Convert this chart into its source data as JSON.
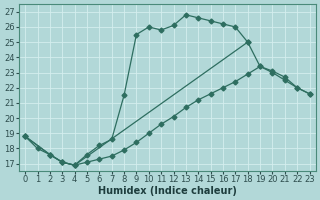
{
  "xlabel": "Humidex (Indice chaleur)",
  "background_color": "#b2d8d8",
  "grid_color": "#d4eeee",
  "line_color": "#2e6e60",
  "xlim": [
    -0.5,
    23.5
  ],
  "ylim": [
    16.5,
    27.5
  ],
  "xticks": [
    0,
    1,
    2,
    3,
    4,
    5,
    6,
    7,
    8,
    9,
    10,
    11,
    12,
    13,
    14,
    15,
    16,
    17,
    18,
    19,
    20,
    21,
    22,
    23
  ],
  "yticks": [
    17,
    18,
    19,
    20,
    21,
    22,
    23,
    24,
    25,
    26,
    27
  ],
  "line1_x": [
    0,
    1,
    2,
    3,
    4,
    5,
    6,
    7,
    8,
    9,
    10,
    11,
    12,
    13,
    14,
    15,
    16,
    17,
    18
  ],
  "line1_y": [
    18.8,
    18.0,
    17.6,
    17.1,
    16.9,
    17.6,
    18.2,
    18.6,
    21.5,
    25.5,
    26.0,
    25.8,
    26.1,
    26.8,
    26.6,
    26.4,
    26.2,
    26.0,
    25.0
  ],
  "line2_x": [
    0,
    2,
    3,
    4,
    18,
    19,
    20,
    21,
    22,
    23
  ],
  "line2_y": [
    18.8,
    17.6,
    17.1,
    16.9,
    25.0,
    23.4,
    23.1,
    22.7,
    22.0,
    21.6
  ],
  "line3_x": [
    0,
    2,
    3,
    4,
    5,
    6,
    7,
    8,
    9,
    10,
    11,
    12,
    13,
    14,
    15,
    16,
    17,
    18,
    19,
    20,
    21,
    22,
    23
  ],
  "line3_y": [
    18.8,
    17.6,
    17.1,
    16.9,
    17.1,
    17.3,
    17.5,
    17.9,
    18.4,
    19.0,
    19.6,
    20.1,
    20.7,
    21.2,
    21.6,
    22.0,
    22.4,
    22.9,
    23.4,
    23.0,
    22.5,
    22.0,
    21.6
  ],
  "marker_size": 2.5,
  "tick_fontsize": 6,
  "xlabel_fontsize": 7
}
